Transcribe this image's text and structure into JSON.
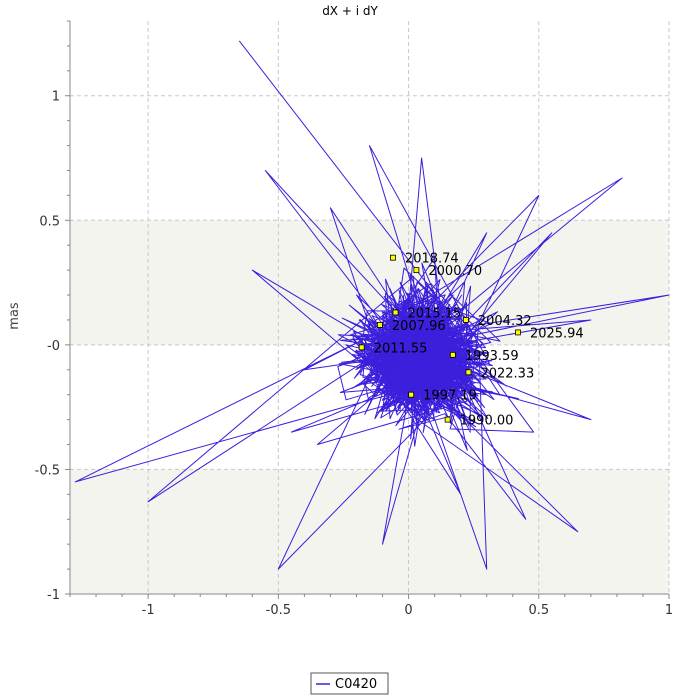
{
  "chart_data": {
    "type": "line",
    "title": "dX + i dY",
    "xlabel": "",
    "ylabel": "mas",
    "xlim": [
      -1.3,
      1.0
    ],
    "ylim": [
      -1.0,
      1.3
    ],
    "x_ticks": [
      -1,
      -0.5,
      0,
      0.5,
      1
    ],
    "x_tick_labels": [
      "-1",
      "-0.5",
      "0",
      "0.5",
      "1"
    ],
    "y_ticks": [
      -1,
      -0.5,
      0,
      0.5,
      1
    ],
    "y_tick_labels": [
      "-1",
      "-0.5",
      "-0",
      "0.5",
      "1"
    ],
    "grid": true,
    "legend_position": "bottom-center",
    "series": [
      {
        "name": "C0420",
        "color": "#3a1fdc",
        "x": [
          -0.65,
          -0.55,
          -1.28,
          -1.0,
          -0.45,
          0.7,
          1.0,
          0.55,
          0.82,
          0.5,
          0.65,
          0.45,
          0.48,
          0.7,
          0.3,
          0.2,
          -0.1,
          -0.35,
          -0.5,
          -0.4,
          -0.6,
          -0.3,
          -0.15,
          0.05,
          0.3,
          0.18,
          -0.05,
          0.1,
          0.25,
          -0.2,
          0.0
        ],
        "y": [
          1.22,
          0.7,
          -0.55,
          -0.63,
          -0.35,
          0.1,
          0.2,
          0.45,
          0.67,
          0.6,
          -0.75,
          -0.7,
          -0.35,
          -0.3,
          -0.9,
          -0.6,
          -0.8,
          -0.4,
          -0.9,
          -0.1,
          0.3,
          0.55,
          0.8,
          0.75,
          0.45,
          0.15,
          -0.25,
          0.35,
          -0.05,
          0.2,
          0.0
        ]
      }
    ],
    "epoch_markers": [
      {
        "label": "2018.74",
        "x": -0.06,
        "y": 0.35
      },
      {
        "label": "2000.70",
        "x": 0.03,
        "y": 0.3
      },
      {
        "label": "2015.15",
        "x": -0.05,
        "y": 0.13
      },
      {
        "label": "2007.96",
        "x": -0.11,
        "y": 0.08
      },
      {
        "label": "2004.32",
        "x": 0.22,
        "y": 0.1
      },
      {
        "label": "2025.94",
        "x": 0.42,
        "y": 0.05
      },
      {
        "label": "2011.55",
        "x": -0.18,
        "y": -0.01
      },
      {
        "label": "1993.59",
        "x": 0.17,
        "y": -0.04
      },
      {
        "label": "2022.33",
        "x": 0.23,
        "y": -0.11
      },
      {
        "label": "1997.19",
        "x": 0.01,
        "y": -0.2
      },
      {
        "label": "1990.00",
        "x": 0.15,
        "y": -0.3
      }
    ]
  }
}
